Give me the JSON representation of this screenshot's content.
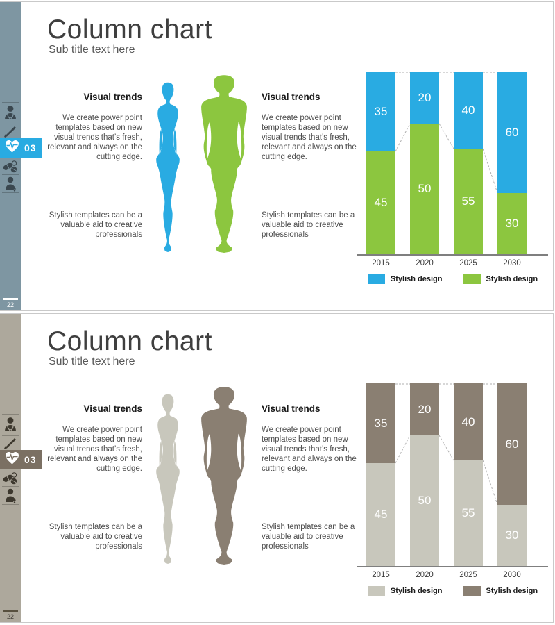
{
  "slides": [
    {
      "title": "Column chart",
      "subtitle": "Sub title text here",
      "badge": "03",
      "page_number": "22",
      "left_block": {
        "heading": "Visual trends",
        "body": "We create power point\ntemplates based on new\nvisual trends that’s fresh,\nrelevant and always on the\ncutting edge."
      },
      "right_block": {
        "heading": "Visual trends",
        "body": "We create power point\ntemplates based on new\nvisual trends that’s fresh,\nrelevant and always on the\ncutting edge."
      },
      "left_footer": "Stylish templates can be a\nvaluable aid to creative\nprofessionals",
      "right_footer": "Stylish templates can be a\nvaluable aid to creative\nprofessionals",
      "sidebar_icons": [
        "doctor-icon",
        "scalpel-icon",
        "heart-pulse-icon",
        "pills-icon",
        "nurse-icon"
      ],
      "theme": {
        "sidebar_bg": "#7E96A2",
        "icon_color": "#3A474F",
        "badge_bg": "#29ABE2",
        "figure_female": "#29ABE2",
        "figure_male": "#8CC63F",
        "page_bar": "#FFFFFF",
        "page_text": "#FFFFFF"
      }
    },
    {
      "title": "Column chart",
      "subtitle": "Sub title text here",
      "badge": "03",
      "page_number": "22",
      "left_block": {
        "heading": "Visual trends",
        "body": "We create power point\ntemplates based on new\nvisual trends that’s fresh,\nrelevant and always on the\ncutting edge."
      },
      "right_block": {
        "heading": "Visual trends",
        "body": "We create power point\ntemplates based on new\nvisual trends that’s fresh,\nrelevant and always on the\ncutting edge."
      },
      "left_footer": "Stylish templates can be a\nvaluable aid to creative\nprofessionals",
      "right_footer": "Stylish templates can be a\nvaluable aid to creative\nprofessionals",
      "sidebar_icons": [
        "doctor-icon",
        "scalpel-icon",
        "heart-pulse-icon",
        "pills-icon",
        "nurse-icon"
      ],
      "theme": {
        "sidebar_bg": "#ADA89C",
        "icon_color": "#3D382E",
        "badge_bg": "#7B7063",
        "figure_female": "#C8C7BC",
        "figure_male": "#8A7F72",
        "page_bar": "#57503F",
        "page_text": "#44403A"
      }
    }
  ],
  "chart_data": [
    {
      "type": "bar",
      "subtype": "100-percent-stacked-column",
      "categories": [
        "2015",
        "2020",
        "2025",
        "2030"
      ],
      "series": [
        {
          "name": "Stylish design",
          "position": "bottom",
          "color": "#8CC63F",
          "values": [
            45,
            50,
            55,
            30
          ]
        },
        {
          "name": "Stylish design",
          "position": "top",
          "color": "#29ABE2",
          "values": [
            35,
            20,
            40,
            60
          ]
        }
      ],
      "legend": [
        {
          "label": "Stylish design",
          "color": "#29ABE2"
        },
        {
          "label": "Stylish design",
          "color": "#8CC63F"
        }
      ],
      "value_labels_shown": true,
      "connector_color": "#AFAFAF",
      "axis_color": "#7F7F7F",
      "legend_position": "bottom"
    },
    {
      "type": "bar",
      "subtype": "100-percent-stacked-column",
      "categories": [
        "2015",
        "2020",
        "2025",
        "2030"
      ],
      "series": [
        {
          "name": "Stylish design",
          "position": "bottom",
          "color": "#C8C7BC",
          "values": [
            45,
            50,
            55,
            30
          ]
        },
        {
          "name": "Stylish design",
          "position": "top",
          "color": "#8A7F72",
          "values": [
            35,
            20,
            40,
            60
          ]
        }
      ],
      "legend": [
        {
          "label": "Stylish design",
          "color": "#C8C7BC"
        },
        {
          "label": "Stylish design",
          "color": "#8A7F72"
        }
      ],
      "value_labels_shown": true,
      "connector_color": "#AFAFAF",
      "axis_color": "#7F7F7F",
      "legend_position": "bottom"
    }
  ]
}
